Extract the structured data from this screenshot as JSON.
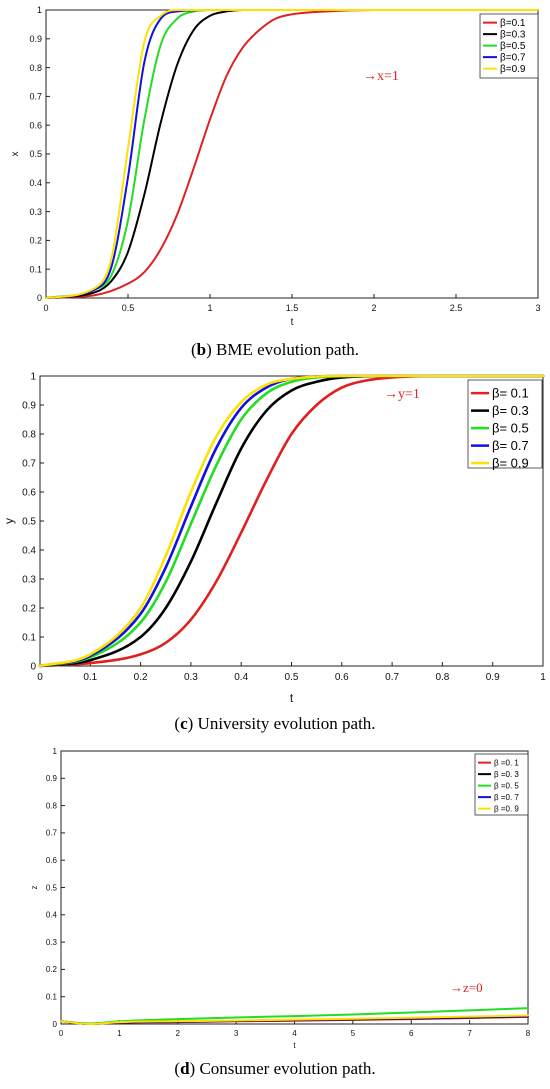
{
  "series_colors": [
    "#e02020",
    "#000000",
    "#22dd22",
    "#1010e0",
    "#ffe000"
  ],
  "annotation_color": "#dd2222",
  "chart_data": [
    {
      "type": "line",
      "xlabel": "t",
      "ylabel": "x",
      "xlim": [
        0,
        3
      ],
      "ylim": [
        0,
        1
      ],
      "xticks": [
        "0",
        "0.5",
        "1",
        "1.5",
        "2",
        "2.5",
        "3"
      ],
      "yticks": [
        "0",
        "0.1",
        "0.2",
        "0.3",
        "0.4",
        "0.5",
        "0.6",
        "0.7",
        "0.8",
        "0.9",
        "1"
      ],
      "annotation": "→x=1",
      "legend_placement": "top-right",
      "series": [
        {
          "name": "β=0.1",
          "x": [
            0,
            0.3,
            0.5,
            0.6,
            0.7,
            0.8,
            0.9,
            1.0,
            1.1,
            1.2,
            1.3,
            1.4,
            1.5,
            1.7,
            2.0,
            3.0
          ],
          "values": [
            0.0,
            0.01,
            0.05,
            0.09,
            0.17,
            0.29,
            0.45,
            0.62,
            0.77,
            0.87,
            0.93,
            0.97,
            0.985,
            0.995,
            1.0,
            1.0
          ]
        },
        {
          "name": "β=0.3",
          "x": [
            0,
            0.3,
            0.4,
            0.5,
            0.6,
            0.7,
            0.8,
            0.9,
            1.0,
            1.1,
            1.2,
            1.4,
            3.0
          ],
          "values": [
            0.0,
            0.02,
            0.06,
            0.16,
            0.36,
            0.61,
            0.81,
            0.93,
            0.98,
            0.995,
            1.0,
            1.0,
            1.0
          ]
        },
        {
          "name": "β=0.5",
          "x": [
            0,
            0.3,
            0.4,
            0.5,
            0.6,
            0.7,
            0.8,
            0.9,
            1.0,
            1.2,
            3.0
          ],
          "values": [
            0.0,
            0.03,
            0.08,
            0.27,
            0.62,
            0.88,
            0.97,
            0.995,
            1.0,
            1.0,
            1.0
          ]
        },
        {
          "name": "β=0.7",
          "x": [
            0,
            0.3,
            0.4,
            0.5,
            0.6,
            0.7,
            0.8,
            1.0,
            3.0
          ],
          "values": [
            0.0,
            0.03,
            0.11,
            0.42,
            0.82,
            0.97,
            0.995,
            1.0,
            1.0
          ]
        },
        {
          "name": "β=0.9",
          "x": [
            0,
            0.3,
            0.4,
            0.5,
            0.6,
            0.7,
            0.8,
            1.0,
            3.0
          ],
          "values": [
            0.0,
            0.035,
            0.14,
            0.52,
            0.89,
            0.98,
            1.0,
            1.0,
            1.0
          ]
        }
      ]
    },
    {
      "type": "line",
      "xlabel": "t",
      "ylabel": "y",
      "xlim": [
        0,
        1
      ],
      "ylim": [
        0,
        1
      ],
      "xticks": [
        "0",
        "0.1",
        "0.2",
        "0.3",
        "0.4",
        "0.5",
        "0.6",
        "0.7",
        "0.8",
        "0.9",
        "1"
      ],
      "yticks": [
        "0",
        "0.1",
        "0.2",
        "0.3",
        "0.4",
        "0.5",
        "0.6",
        "0.7",
        "0.8",
        "0.9",
        "1"
      ],
      "annotation": "→y=1",
      "legend_placement": "top-right",
      "series": [
        {
          "name": "β= 0.1",
          "x": [
            0,
            0.1,
            0.2,
            0.25,
            0.3,
            0.35,
            0.4,
            0.45,
            0.5,
            0.55,
            0.6,
            0.65,
            0.7,
            0.8,
            1.0
          ],
          "values": [
            0.0,
            0.01,
            0.04,
            0.08,
            0.16,
            0.29,
            0.46,
            0.64,
            0.8,
            0.9,
            0.96,
            0.985,
            0.995,
            1.0,
            1.0
          ]
        },
        {
          "name": "β= 0.3",
          "x": [
            0,
            0.1,
            0.2,
            0.25,
            0.3,
            0.35,
            0.4,
            0.45,
            0.5,
            0.55,
            0.6,
            0.7,
            1.0
          ],
          "values": [
            0.0,
            0.02,
            0.1,
            0.2,
            0.36,
            0.56,
            0.75,
            0.88,
            0.95,
            0.98,
            0.995,
            1.0,
            1.0
          ]
        },
        {
          "name": "β= 0.5",
          "x": [
            0,
            0.1,
            0.2,
            0.25,
            0.3,
            0.35,
            0.4,
            0.45,
            0.5,
            0.55,
            0.65,
            1.0
          ],
          "values": [
            0.0,
            0.03,
            0.15,
            0.29,
            0.49,
            0.69,
            0.85,
            0.94,
            0.98,
            0.995,
            1.0,
            1.0
          ]
        },
        {
          "name": "β= 0.7",
          "x": [
            0,
            0.1,
            0.2,
            0.25,
            0.3,
            0.35,
            0.4,
            0.45,
            0.5,
            0.6,
            1.0
          ],
          "values": [
            0.0,
            0.035,
            0.18,
            0.34,
            0.55,
            0.75,
            0.89,
            0.96,
            0.99,
            1.0,
            1.0
          ]
        },
        {
          "name": "β= 0.9",
          "x": [
            0,
            0.1,
            0.2,
            0.25,
            0.3,
            0.35,
            0.4,
            0.45,
            0.5,
            0.6,
            1.0
          ],
          "values": [
            0.0,
            0.04,
            0.2,
            0.38,
            0.6,
            0.79,
            0.91,
            0.97,
            0.99,
            1.0,
            1.0
          ]
        }
      ]
    },
    {
      "type": "line",
      "xlabel": "t",
      "ylabel": "z",
      "xlim": [
        0,
        8
      ],
      "ylim": [
        0,
        1
      ],
      "xticks": [
        "0",
        "1",
        "2",
        "3",
        "4",
        "5",
        "6",
        "7",
        "8"
      ],
      "yticks": [
        "0",
        "0.1",
        "0.2",
        "0.3",
        "0.4",
        "0.5",
        "0.6",
        "0.7",
        "0.8",
        "0.9",
        "1"
      ],
      "annotation": "→z=0",
      "legend_placement": "top-right",
      "series": [
        {
          "name": "β =0. 1",
          "x": [
            0,
            0.5,
            1,
            2,
            3,
            4,
            5,
            6,
            7,
            8
          ],
          "values": [
            0.01,
            0.0,
            0.005,
            0.007,
            0.01,
            0.012,
            0.015,
            0.018,
            0.022,
            0.026
          ]
        },
        {
          "name": "β =0. 3",
          "x": [
            0,
            0.5,
            1,
            2,
            3,
            4,
            5,
            6,
            7,
            8
          ],
          "values": [
            0.01,
            0.0,
            0.006,
            0.008,
            0.011,
            0.014,
            0.017,
            0.02,
            0.024,
            0.028
          ]
        },
        {
          "name": "β =0. 5",
          "x": [
            0,
            0.5,
            1,
            2,
            3,
            4,
            5,
            6,
            7,
            8
          ],
          "values": [
            0.01,
            0.002,
            0.01,
            0.018,
            0.024,
            0.029,
            0.035,
            0.042,
            0.05,
            0.058
          ]
        },
        {
          "name": "β =0. 7",
          "x": [
            0,
            0.5,
            1,
            2,
            3,
            4,
            5,
            6,
            7,
            8
          ],
          "values": [
            0.01,
            0.0,
            0.006,
            0.009,
            0.012,
            0.015,
            0.018,
            0.021,
            0.025,
            0.029
          ]
        },
        {
          "name": "β =0. 9",
          "x": [
            0,
            0.5,
            1,
            2,
            3,
            4,
            5,
            6,
            7,
            8
          ],
          "values": [
            0.01,
            0.0,
            0.007,
            0.01,
            0.013,
            0.016,
            0.019,
            0.023,
            0.027,
            0.031
          ]
        }
      ]
    }
  ],
  "captions": [
    {
      "letter": "b",
      "text": ") BME evolution path."
    },
    {
      "letter": "c",
      "text": ") University evolution path."
    },
    {
      "letter": "d",
      "text": ") Consumer evolution path."
    }
  ]
}
